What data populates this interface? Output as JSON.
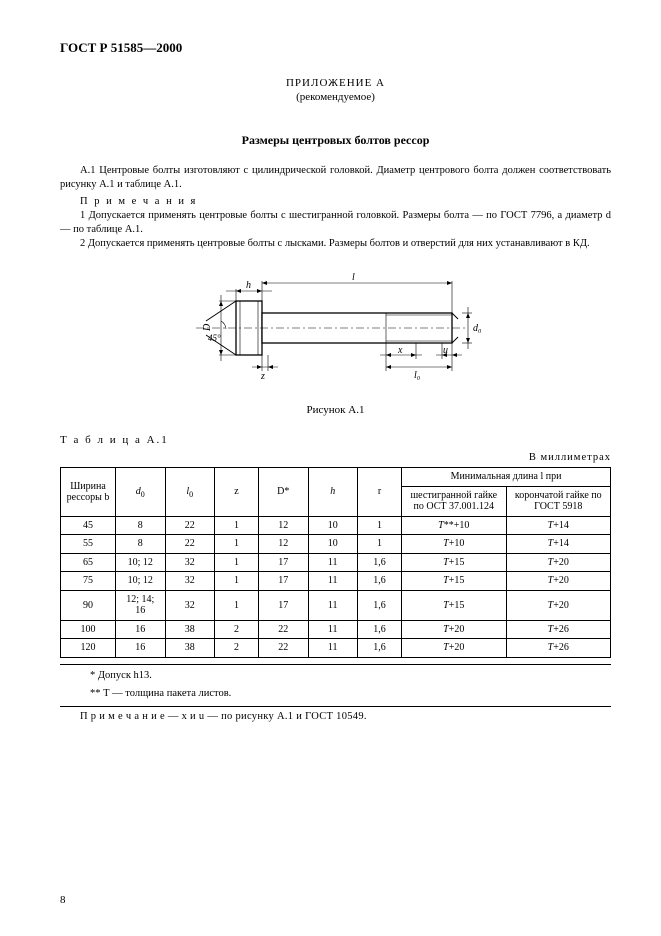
{
  "doc_code": "ГОСТ Р 51585—2000",
  "appendix": {
    "title": "ПРИЛОЖЕНИЕ А",
    "type": "(рекомендуемое)"
  },
  "section_title": "Размеры центровых болтов рессор",
  "para_a1": "А.1 Центровые болты изготовляют с цилиндрической головкой. Диаметр центрового болта должен соответствовать рисунку А.1 и таблице А.1.",
  "notes_label": "П р и м е ч а н и я",
  "note1": "1 Допускается применять центровые болты с шестигранной головкой. Размеры болта — по ГОСТ 7796, а диаметр d — по таблице А.1.",
  "note2": "2 Допускается применять центровые болты с лысками. Размеры болтов и отверстий для них устанавливают в КД.",
  "figure": {
    "caption": "Рисунок А.1",
    "labels": {
      "h": "h",
      "l": "l",
      "D": "D",
      "angle45": "45°",
      "z": "z",
      "x": "x",
      "u": "u",
      "d0": "d₀",
      "l0": "l₀"
    },
    "stroke": "#000000",
    "fill": "#ffffff"
  },
  "table": {
    "label": "Т а б л и ц а  А.1",
    "units": "В  миллиметрах",
    "head": {
      "width_b": "Ширина рессоры b",
      "d0": "d₀",
      "l0": "l₀",
      "z": "z",
      "Dstar": "D*",
      "h": "h",
      "r": "r",
      "min_len": "Минимальная длина l при",
      "hex_nut": "шестигранной гайке по ОСТ 37.001.124",
      "crown_nut": "корончатой гайке по ГОСТ 5918"
    },
    "rows": [
      {
        "b": "45",
        "d0": "8",
        "l0": "22",
        "z": "1",
        "D": "12",
        "h": "10",
        "r": "1",
        "m1": "T**+10",
        "m2": "T+14"
      },
      {
        "b": "55",
        "d0": "8",
        "l0": "22",
        "z": "1",
        "D": "12",
        "h": "10",
        "r": "1",
        "m1": "T+10",
        "m2": "T+14"
      },
      {
        "b": "65",
        "d0": "10; 12",
        "l0": "32",
        "z": "1",
        "D": "17",
        "h": "11",
        "r": "1,6",
        "m1": "T+15",
        "m2": "T+20"
      },
      {
        "b": "75",
        "d0": "10; 12",
        "l0": "32",
        "z": "1",
        "D": "17",
        "h": "11",
        "r": "1,6",
        "m1": "T+15",
        "m2": "T+20"
      },
      {
        "b": "90",
        "d0": "12; 14; 16",
        "l0": "32",
        "z": "1",
        "D": "17",
        "h": "11",
        "r": "1,6",
        "m1": "T+15",
        "m2": "T+20"
      },
      {
        "b": "100",
        "d0": "16",
        "l0": "38",
        "z": "2",
        "D": "22",
        "h": "11",
        "r": "1,6",
        "m1": "T+20",
        "m2": "T+26"
      },
      {
        "b": "120",
        "d0": "16",
        "l0": "38",
        "z": "2",
        "D": "22",
        "h": "11",
        "r": "1,6",
        "m1": "T+20",
        "m2": "T+26"
      }
    ],
    "footnote1": "*  Допуск h13.",
    "footnote2": "** Т — толщина пакета листов.",
    "final_note": "П р и м е ч а н и е — x  и  u — по рисунку А.1 и ГОСТ 10549."
  },
  "page_number": "8"
}
